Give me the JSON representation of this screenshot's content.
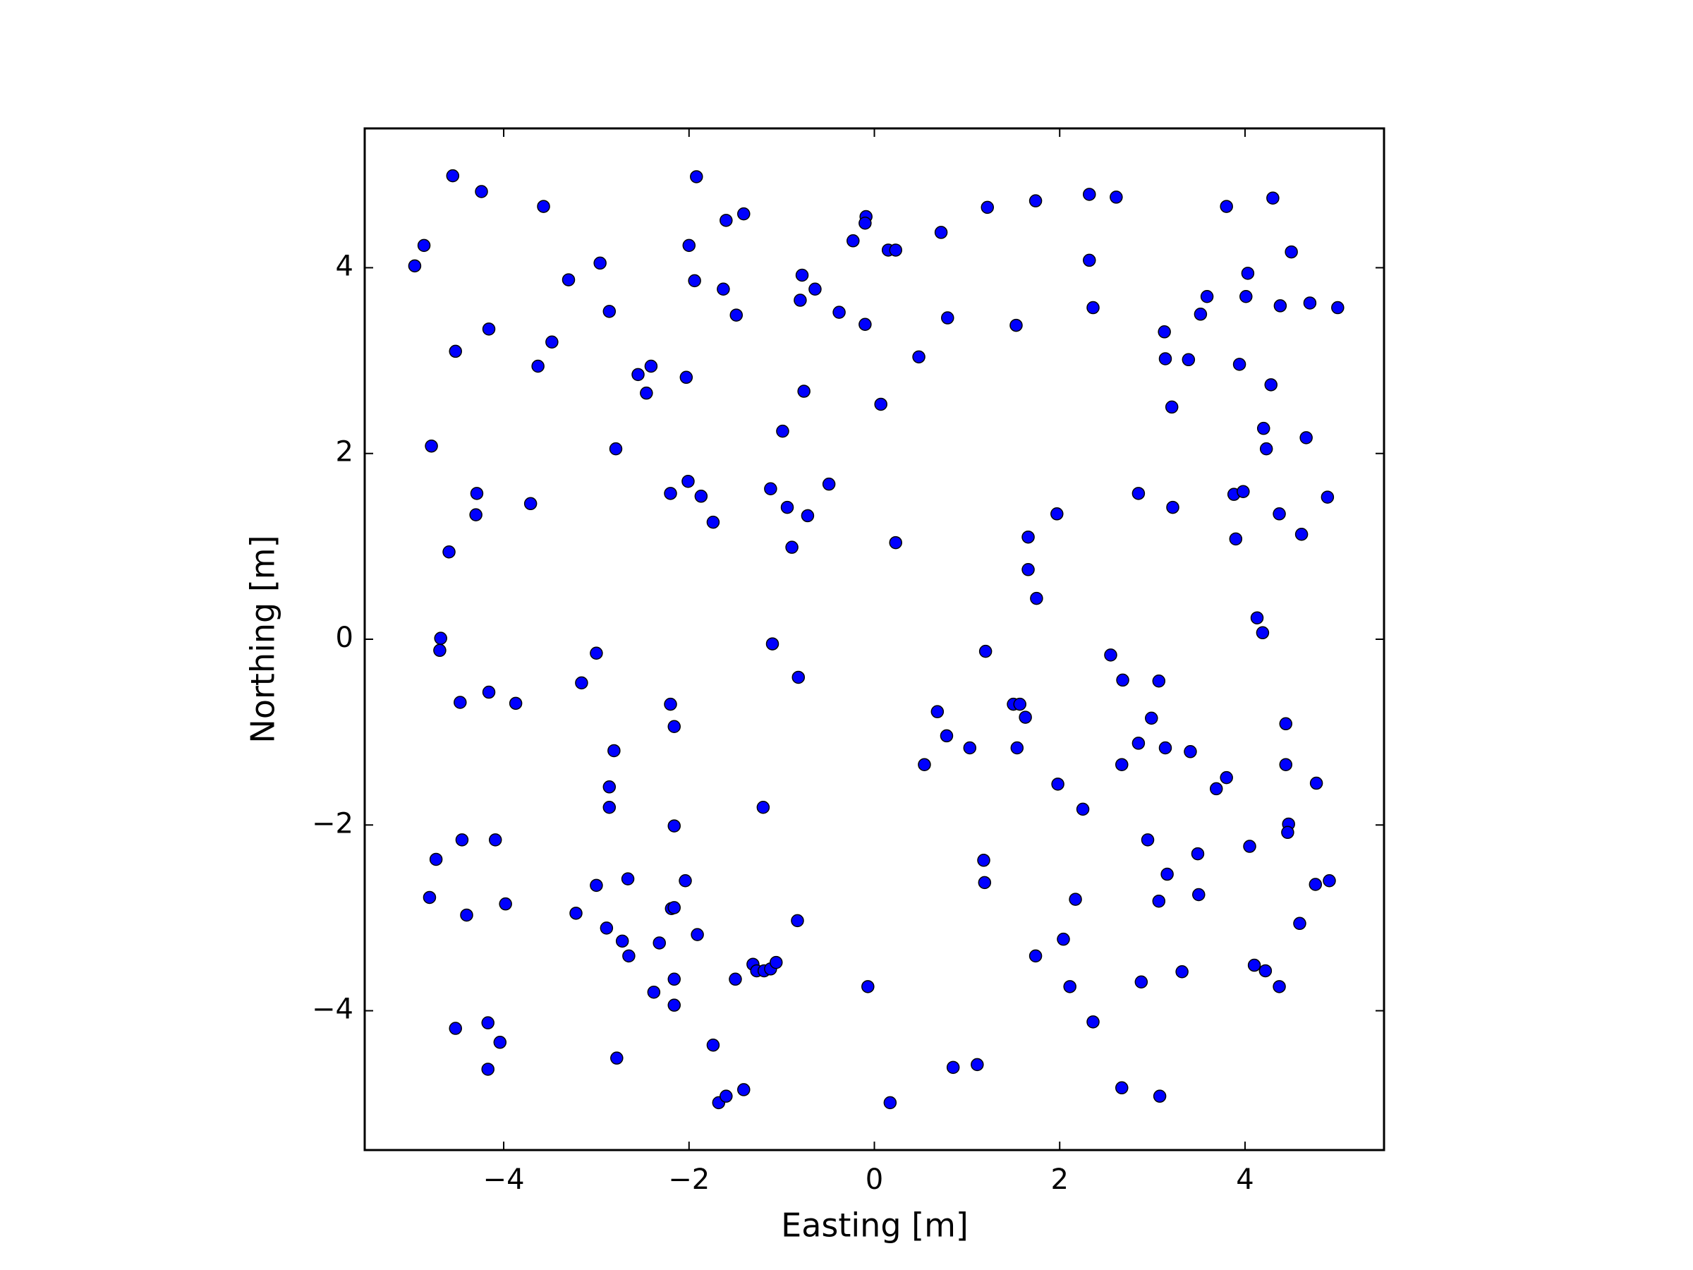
{
  "chart_data": {
    "type": "scatter",
    "x_label": "Easting [m]",
    "y_label": "Northing [m]",
    "color": "#0000ff",
    "xlim": [
      -5.5,
      5.5
    ],
    "ylim": [
      -5.5,
      5.5
    ],
    "xticks": [
      {
        "value": -4,
        "label": "−4"
      },
      {
        "value": -2,
        "label": "−2"
      },
      0,
      2,
      4
    ],
    "yticks": [
      {
        "value": -4,
        "label": "−4"
      },
      {
        "value": -2,
        "label": "−2"
      },
      0,
      2,
      4
    ],
    "grid": false,
    "x": [
      -4.96,
      -4.86,
      -4.55,
      -4.24,
      -3.57,
      -3.3,
      -2.96,
      -2.86,
      -3.48,
      -3.63,
      -4.16,
      -4.52,
      -2.55,
      -2.41,
      -2.46,
      -2.03,
      -2.0,
      -1.92,
      -1.94,
      -1.6,
      -1.41,
      -1.63,
      -1.49,
      -2.79,
      -4.78,
      -4.29,
      -4.3,
      -4.59,
      -3.71,
      -2.2,
      -2.01,
      -1.87,
      -1.74,
      -1.12,
      -0.99,
      -0.76,
      -0.94,
      -0.72,
      -0.89,
      -0.49,
      -0.78,
      -0.8,
      -0.64,
      -0.38,
      -0.23,
      -0.09,
      -0.1,
      -0.1,
      0.15,
      0.23,
      0.07,
      0.48,
      0.72,
      0.79,
      0.23,
      1.22,
      1.74,
      1.53,
      2.32,
      2.61,
      2.32,
      2.36,
      1.97,
      1.66,
      1.66,
      1.75,
      2.85,
      3.22,
      3.13,
      3.14,
      3.39,
      3.21,
      3.52,
      3.59,
      3.8,
      4.3,
      4.5,
      4.03,
      4.01,
      4.38,
      4.7,
      5.0,
      3.94,
      4.28,
      4.2,
      4.23,
      4.66,
      3.88,
      3.98,
      4.37,
      3.9,
      4.61,
      4.89,
      4.13,
      4.19,
      -4.68,
      -4.69,
      -4.47,
      -4.16,
      -3.87,
      -3.0,
      -3.16,
      -2.2,
      -2.16,
      -1.1,
      -0.82,
      -2.81,
      -2.86,
      -2.86,
      -2.16,
      -1.2,
      -4.73,
      -4.45,
      -4.09,
      -4.8,
      -4.4,
      -3.98,
      -3.22,
      -3.0,
      -2.66,
      -2.04,
      -2.19,
      -2.16,
      -2.89,
      -2.72,
      -2.65,
      -2.32,
      -1.91,
      -2.16,
      -2.38,
      -2.16,
      -0.83,
      -1.5,
      -1.31,
      -1.27,
      -1.19,
      -1.12,
      -1.06,
      -1.74,
      -2.78,
      -4.52,
      -4.17,
      -4.04,
      -4.17,
      -1.68,
      -1.6,
      -1.41,
      -0.07,
      0.17,
      0.85,
      1.11,
      1.2,
      0.68,
      0.78,
      1.03,
      0.54,
      1.5,
      1.57,
      1.63,
      1.54,
      2.55,
      2.68,
      3.07,
      2.99,
      2.85,
      2.67,
      3.14,
      3.41,
      4.44,
      4.44,
      3.8,
      3.69,
      4.77,
      1.98,
      2.25,
      4.47,
      4.46,
      4.05,
      2.95,
      3.16,
      3.49,
      3.5,
      3.07,
      2.17,
      4.76,
      4.91,
      4.59,
      1.18,
      1.19,
      2.04,
      1.74,
      2.11,
      2.88,
      3.32,
      4.1,
      4.22,
      4.37,
      2.36,
      2.67,
      3.08
    ],
    "values": [
      4.02,
      4.24,
      4.99,
      4.82,
      4.66,
      3.87,
      4.05,
      3.53,
      3.2,
      2.94,
      3.34,
      3.1,
      2.85,
      2.94,
      2.65,
      2.82,
      4.24,
      4.98,
      3.86,
      4.51,
      4.58,
      3.77,
      3.49,
      2.05,
      2.08,
      1.57,
      1.34,
      0.94,
      1.46,
      1.57,
      1.7,
      1.54,
      1.26,
      1.62,
      2.24,
      2.67,
      1.42,
      1.33,
      0.99,
      1.67,
      3.92,
      3.65,
      3.77,
      3.52,
      4.29,
      4.55,
      4.48,
      3.39,
      4.19,
      4.19,
      2.53,
      3.04,
      4.38,
      3.46,
      1.04,
      4.65,
      4.72,
      3.38,
      4.79,
      4.76,
      4.08,
      3.57,
      1.35,
      1.1,
      0.75,
      0.44,
      1.57,
      1.42,
      3.31,
      3.02,
      3.01,
      2.5,
      3.5,
      3.69,
      4.66,
      4.75,
      4.17,
      3.94,
      3.69,
      3.59,
      3.62,
      3.57,
      2.96,
      2.74,
      2.27,
      2.05,
      2.17,
      1.56,
      1.59,
      1.35,
      1.08,
      1.13,
      1.53,
      0.23,
      0.07,
      0.01,
      -0.12,
      -0.68,
      -0.57,
      -0.69,
      -0.15,
      -0.47,
      -0.7,
      -0.94,
      -0.05,
      -0.41,
      -1.2,
      -1.59,
      -1.81,
      -2.01,
      -1.81,
      -2.37,
      -2.16,
      -2.16,
      -2.78,
      -2.97,
      -2.85,
      -2.95,
      -2.65,
      -2.58,
      -2.6,
      -2.9,
      -2.89,
      -3.11,
      -3.25,
      -3.41,
      -3.27,
      -3.18,
      -3.66,
      -3.8,
      -3.94,
      -3.03,
      -3.66,
      -3.5,
      -3.57,
      -3.57,
      -3.55,
      -3.48,
      -4.37,
      -4.51,
      -4.19,
      -4.13,
      -4.34,
      -4.63,
      -4.99,
      -4.92,
      -4.85,
      -3.74,
      -4.99,
      -4.61,
      -4.58,
      -0.13,
      -0.78,
      -1.04,
      -1.17,
      -1.35,
      -0.7,
      -0.7,
      -0.84,
      -1.17,
      -0.17,
      -0.44,
      -0.45,
      -0.85,
      -1.12,
      -1.35,
      -1.17,
      -1.21,
      -0.91,
      -1.35,
      -1.49,
      -1.61,
      -1.55,
      -1.56,
      -1.83,
      -1.99,
      -2.08,
      -2.23,
      -2.16,
      -2.53,
      -2.31,
      -2.75,
      -2.82,
      -2.8,
      -2.64,
      -2.6,
      -3.06,
      -2.38,
      -2.62,
      -3.23,
      -3.41,
      -3.74,
      -3.69,
      -3.58,
      -3.51,
      -3.57,
      -3.74,
      -4.12,
      -4.83,
      -4.92
    ]
  }
}
